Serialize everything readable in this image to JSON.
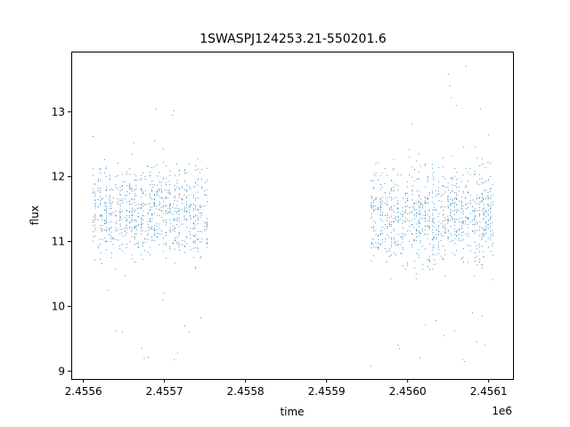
{
  "chart_data": {
    "type": "scatter",
    "title": "1SWASPJ124253.21-550201.6",
    "xlabel": "time",
    "ylabel": "flux",
    "x_offset_label": "1e6",
    "xlim": [
      2.455585,
      2.45613
    ],
    "ylim": [
      8.88,
      13.93
    ],
    "x_ticks": [
      2.4556,
      2.4557,
      2.4558,
      2.4559,
      2.456,
      2.4561
    ],
    "x_tick_labels": [
      "2.4556",
      "2.4557",
      "2.4558",
      "2.4559",
      "2.4560",
      "2.4561"
    ],
    "y_ticks": [
      9,
      10,
      11,
      12,
      13
    ],
    "y_tick_labels": [
      "9",
      "10",
      "11",
      "12",
      "13"
    ],
    "grid": false,
    "legend": "none",
    "marker_color": "#1f77b4",
    "series": [
      {
        "description_visible": "dense observation season clusters",
        "segments": [
          {
            "x_range": [
              2.455612,
              2.455755
            ],
            "y_center": 11.45,
            "y_spread": 0.45
          },
          {
            "x_range": [
              2.455955,
              2.456108
            ],
            "y_center": 11.4,
            "y_spread": 0.5
          }
        ],
        "outliers": [
          [
            2.455612,
            12.62
          ],
          [
            2.45563,
            10.25
          ],
          [
            2.45564,
            9.62
          ],
          [
            2.455648,
            9.6
          ],
          [
            2.455662,
            12.52
          ],
          [
            2.455672,
            9.35
          ],
          [
            2.455675,
            9.2
          ],
          [
            2.45568,
            9.22
          ],
          [
            2.455688,
            12.55
          ],
          [
            2.45569,
            13.05
          ],
          [
            2.455698,
            10.1
          ],
          [
            2.455712,
            9.18
          ],
          [
            2.455716,
            9.28
          ],
          [
            2.455725,
            9.7
          ],
          [
            2.45573,
            9.6
          ],
          [
            2.455745,
            9.82
          ],
          [
            2.45571,
            12.95
          ],
          [
            2.455712,
            13.02
          ],
          [
            2.4557,
            10.2
          ],
          [
            2.455955,
            9.08
          ],
          [
            2.455988,
            9.4
          ],
          [
            2.45599,
            9.35
          ],
          [
            2.456005,
            12.82
          ],
          [
            2.456015,
            9.2
          ],
          [
            2.456022,
            9.72
          ],
          [
            2.456035,
            9.78
          ],
          [
            2.456045,
            9.55
          ],
          [
            2.45605,
            13.58
          ],
          [
            2.456052,
            13.4
          ],
          [
            2.456054,
            13.22
          ],
          [
            2.45606,
            13.1
          ],
          [
            2.456058,
            9.62
          ],
          [
            2.456068,
            9.18
          ],
          [
            2.45607,
            9.15
          ],
          [
            2.456072,
            13.7
          ],
          [
            2.45608,
            9.9
          ],
          [
            2.456085,
            9.45
          ],
          [
            2.45609,
            13.05
          ],
          [
            2.456092,
            9.85
          ],
          [
            2.456095,
            9.4
          ],
          [
            2.4561,
            12.65
          ]
        ]
      }
    ]
  }
}
